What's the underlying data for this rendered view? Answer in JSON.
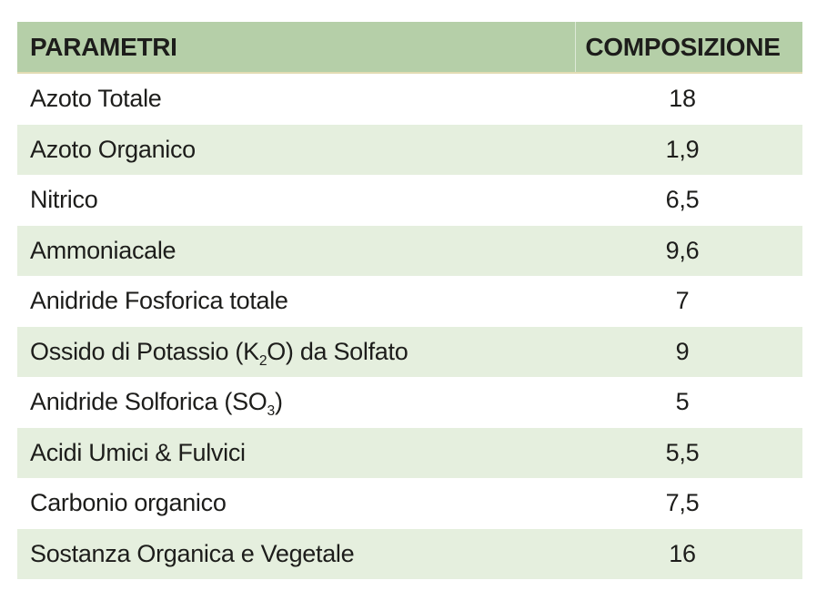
{
  "table": {
    "headers": {
      "param": "PARAMETRI",
      "comp": "COMPOSIZIONE"
    },
    "rows": [
      {
        "pre": "Azoto Totale",
        "sub": "",
        "post": "",
        "value": "18"
      },
      {
        "pre": "Azoto Organico",
        "sub": "",
        "post": "",
        "value": "1,9"
      },
      {
        "pre": "Nitrico",
        "sub": "",
        "post": "",
        "value": "6,5"
      },
      {
        "pre": "Ammoniacale",
        "sub": "",
        "post": "",
        "value": "9,6"
      },
      {
        "pre": "Anidride Fosforica totale",
        "sub": "",
        "post": "",
        "value": "7"
      },
      {
        "pre": "Ossido di Potassio (K",
        "sub": "2",
        "post": "O) da Solfato",
        "value": "9"
      },
      {
        "pre": "Anidride Solforica (SO",
        "sub": "3",
        "post": ")",
        "value": "5"
      },
      {
        "pre": "Acidi Umici & Fulvici",
        "sub": "",
        "post": "",
        "value": "5,5"
      },
      {
        "pre": "Carbonio organico",
        "sub": "",
        "post": "",
        "value": "7,5"
      },
      {
        "pre": "Sostanza Organica e Vegetale",
        "sub": "",
        "post": "",
        "value": "16"
      }
    ],
    "colors": {
      "header_bg": "#b5cfa8",
      "header_edge": "#e2dcb3",
      "row_alt_bg": "#e5efde",
      "row_bg": "#ffffff",
      "text": "#1d1d1b"
    }
  }
}
